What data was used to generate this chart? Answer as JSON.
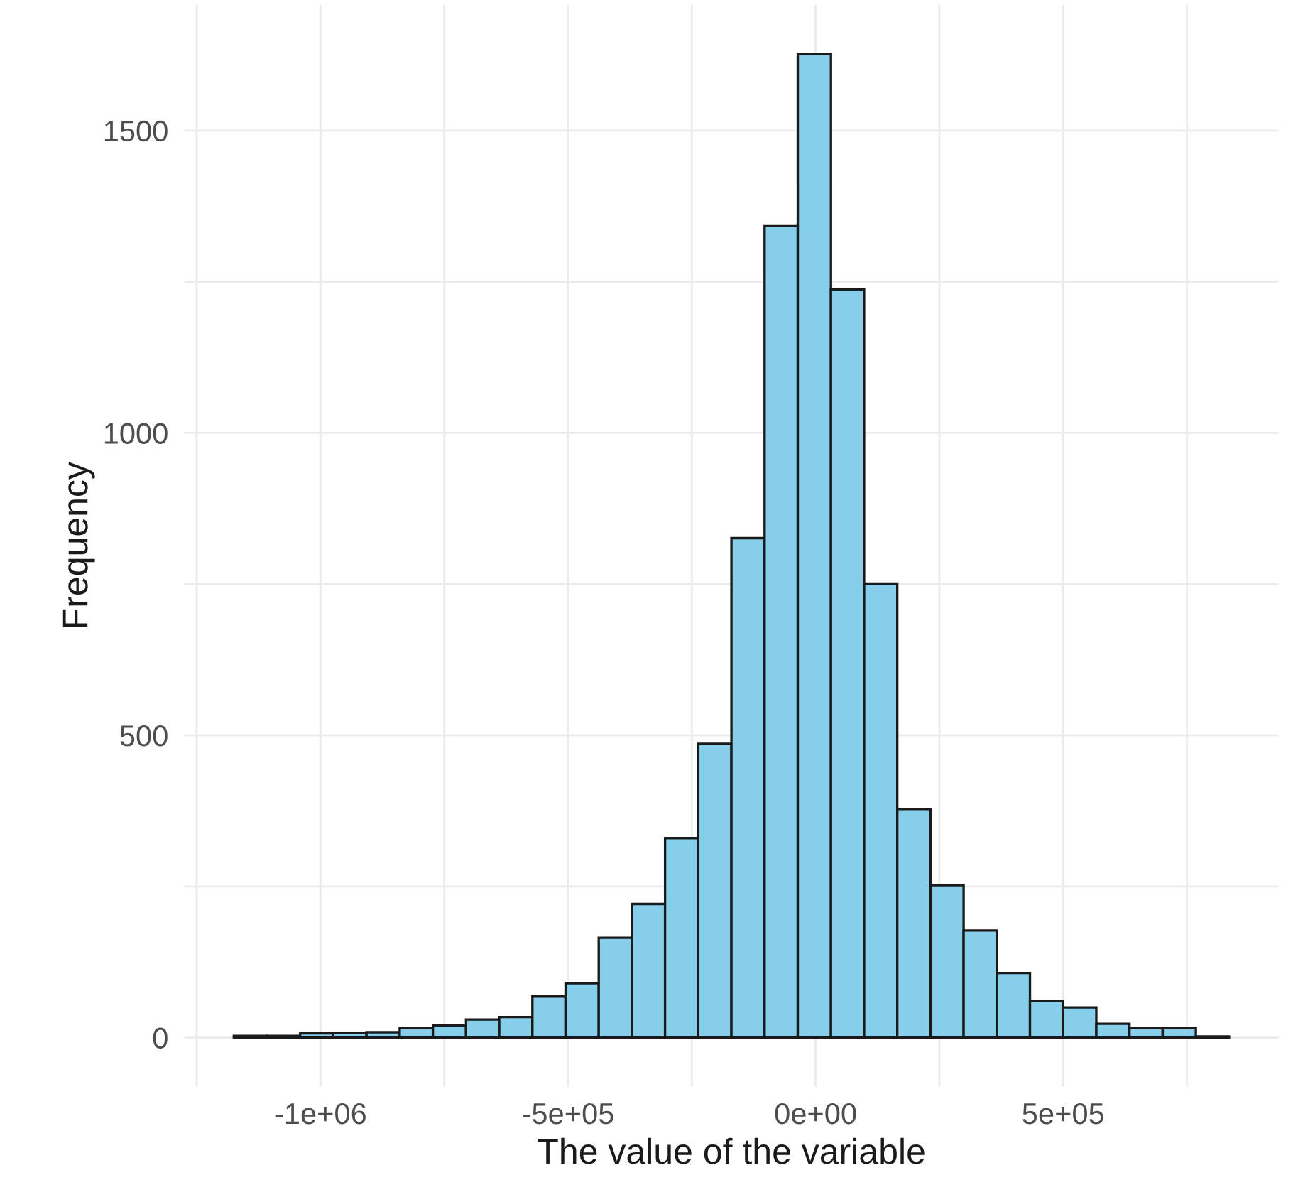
{
  "chart_data": {
    "type": "histogram",
    "xlabel": "The value of the variable",
    "ylabel": "Frequency",
    "bins": [
      -1175000,
      -1108000,
      -1041000,
      -974000,
      -907000,
      -840000,
      -773000,
      -706000,
      -639000,
      -572000,
      -505000,
      -438000,
      -371000,
      -304000,
      -237000,
      -170000,
      -103000,
      -36000,
      31000,
      98000,
      165000,
      232000,
      299000,
      366000,
      433000,
      500000,
      567000,
      634000,
      701000,
      768000,
      835000
    ],
    "values": [
      3,
      3,
      7,
      8,
      9,
      16,
      20,
      30,
      34,
      68,
      90,
      165,
      221,
      330,
      486,
      826,
      1342,
      1627,
      1237,
      751,
      378,
      252,
      177,
      107,
      61,
      50,
      23,
      16,
      16,
      2
    ],
    "color": "#87ceeb",
    "xlim": [
      -1275000,
      935000
    ],
    "xticks": [
      {
        "value": -1250000,
        "label": null
      },
      {
        "value": -1000000,
        "label": "-1e+06"
      },
      {
        "value": -750000,
        "label": null
      },
      {
        "value": -500000,
        "label": "-5e+05"
      },
      {
        "value": -250000,
        "label": null
      },
      {
        "value": 0,
        "label": "0e+00"
      },
      {
        "value": 250000,
        "label": null
      },
      {
        "value": 500000,
        "label": "5e+05"
      },
      {
        "value": 750000,
        "label": null
      }
    ],
    "ylim": [
      -81,
      1708
    ],
    "yticks": [
      0,
      {
        "value": 250,
        "label": null
      },
      500,
      {
        "value": 750,
        "label": null
      },
      1000,
      {
        "value": 1250,
        "label": null
      },
      1500
    ],
    "grid": true
  }
}
